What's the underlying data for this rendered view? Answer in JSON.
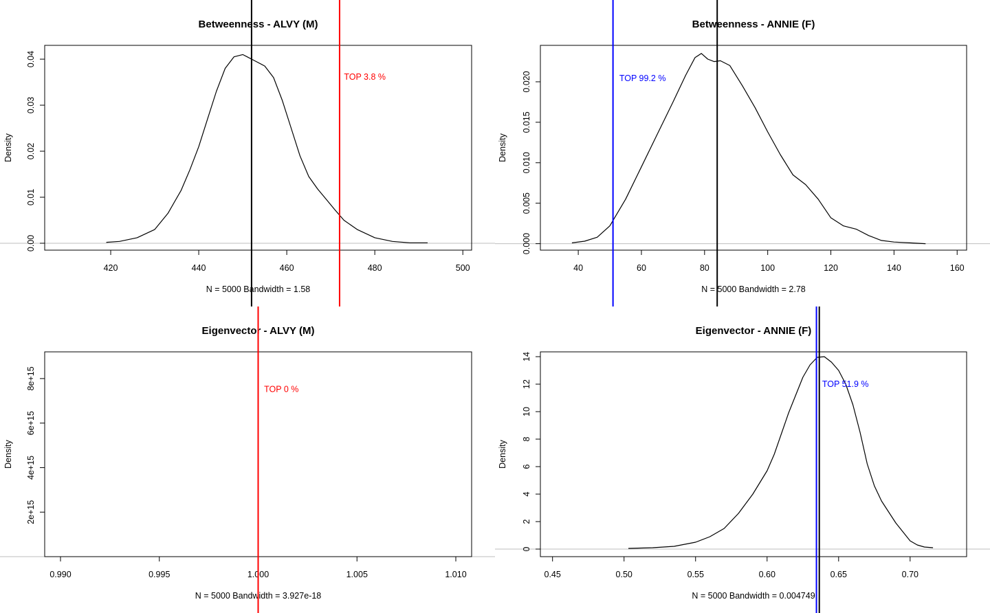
{
  "chart_data": [
    {
      "type": "density",
      "title": "Betweenness - ALVY (M)",
      "xlabel": "N = 5000   Bandwidth = 1.58",
      "ylabel": "Density",
      "xlim": [
        405,
        502
      ],
      "ylim": [
        -0.0015,
        0.043
      ],
      "xticks": [
        420,
        440,
        460,
        480,
        500
      ],
      "xtick_labels": [
        "420",
        "440",
        "460",
        "480",
        "500"
      ],
      "yticks": [
        0,
        0.01,
        0.02,
        0.03,
        0.04
      ],
      "ytick_labels": [
        "0.00",
        "0.01",
        "0.02",
        "0.03",
        "0.04"
      ],
      "curve": {
        "x": [
          419,
          422,
          426,
          430,
          433,
          436,
          438,
          440,
          442,
          444,
          446,
          448,
          450,
          451,
          453,
          455,
          457,
          459,
          461,
          463,
          465,
          467,
          469,
          471,
          473,
          476,
          480,
          484,
          488,
          492
        ],
        "y": [
          0.0002,
          0.0004,
          0.0012,
          0.003,
          0.0065,
          0.0115,
          0.016,
          0.021,
          0.027,
          0.033,
          0.038,
          0.0405,
          0.041,
          0.0405,
          0.0395,
          0.0385,
          0.036,
          0.031,
          0.025,
          0.019,
          0.0145,
          0.0118,
          0.0095,
          0.0072,
          0.005,
          0.003,
          0.0012,
          0.0004,
          0.0001,
          0.0001
        ]
      },
      "vlines": [
        {
          "name": "mean-line",
          "x": 452,
          "color": "#000000"
        },
        {
          "name": "observed-line",
          "x": 472,
          "color": "#ff0000"
        }
      ],
      "annotation": {
        "text": "TOP 3.8 %",
        "x": 473,
        "y": 0.0355,
        "color": "#ff0000"
      }
    },
    {
      "type": "density",
      "title": "Betweenness - ANNIE (F)",
      "xlabel": "N = 5000   Bandwidth = 2.78",
      "ylabel": "Density",
      "xlim": [
        28,
        163
      ],
      "ylim": [
        -0.0008,
        0.0245
      ],
      "xticks": [
        40,
        60,
        80,
        100,
        120,
        140,
        160
      ],
      "xtick_labels": [
        "40",
        "60",
        "80",
        "100",
        "120",
        "140",
        "160"
      ],
      "yticks": [
        0,
        0.005,
        0.01,
        0.015,
        0.02
      ],
      "ytick_labels": [
        "0.000",
        "0.005",
        "0.010",
        "0.015",
        "0.020"
      ],
      "curve": {
        "x": [
          38,
          42,
          46,
          50,
          55,
          60,
          65,
          70,
          74,
          77,
          79,
          81,
          83,
          85,
          88,
          92,
          96,
          100,
          104,
          108,
          112,
          116,
          120,
          124,
          128,
          132,
          136,
          140,
          145,
          150
        ],
        "y": [
          0.0001,
          0.0003,
          0.0008,
          0.0022,
          0.0055,
          0.0095,
          0.0135,
          0.0175,
          0.0208,
          0.023,
          0.0235,
          0.0228,
          0.0225,
          0.0226,
          0.022,
          0.0195,
          0.0168,
          0.0138,
          0.011,
          0.0085,
          0.0073,
          0.0055,
          0.0032,
          0.0022,
          0.0018,
          0.001,
          0.0004,
          0.0002,
          0.0001,
          0
        ]
      },
      "vlines": [
        {
          "name": "observed-line",
          "x": 51,
          "color": "#0000ff"
        },
        {
          "name": "mean-line",
          "x": 84,
          "color": "#000000"
        }
      ],
      "annotation": {
        "text": "TOP 99.2 %",
        "x": 53,
        "y": 0.0201,
        "color": "#0000ff"
      }
    },
    {
      "type": "density",
      "title": "Eigenvector - ALVY (M)",
      "xlabel": "N = 5000   Bandwidth = 3.927e-18",
      "ylabel": "Density",
      "xlim": [
        0.9892,
        1.0108
      ],
      "ylim": [
        0,
        9200000000000000.0
      ],
      "xticks": [
        0.99,
        0.995,
        1.0,
        1.005,
        1.01
      ],
      "xtick_labels": [
        "0.990",
        "0.995",
        "1.000",
        "1.005",
        "1.010"
      ],
      "yticks": [
        2000000000000000.0,
        4000000000000000.0,
        6000000000000000.0,
        8000000000000000.0
      ],
      "ytick_labels": [
        "2e+15",
        "4e+15",
        "6e+15",
        "8e+15"
      ],
      "vlines": [
        {
          "name": "observed-line",
          "x": 1.0,
          "color": "#ff0000"
        }
      ],
      "annotation": {
        "text": "TOP 0 %",
        "x": 1.0003,
        "y": 7400000000000000.0,
        "color": "#ff0000"
      }
    },
    {
      "type": "density",
      "title": "Eigenvector - ANNIE (F)",
      "xlabel": "N = 5000   Bandwidth = 0.004749",
      "ylabel": "Density",
      "xlim": [
        0.4415,
        0.7395
      ],
      "ylim": [
        -0.55,
        14.35
      ],
      "xticks": [
        0.45,
        0.5,
        0.55,
        0.6,
        0.65,
        0.7
      ],
      "xtick_labels": [
        "0.45",
        "0.50",
        "0.55",
        "0.60",
        "0.65",
        "0.70"
      ],
      "yticks": [
        0,
        2,
        4,
        6,
        8,
        10,
        12,
        14
      ],
      "ytick_labels": [
        "0",
        "2",
        "4",
        "6",
        "8",
        "10",
        "12",
        "14"
      ],
      "curve": {
        "x": [
          0.503,
          0.52,
          0.535,
          0.55,
          0.56,
          0.57,
          0.58,
          0.59,
          0.6,
          0.605,
          0.61,
          0.615,
          0.62,
          0.625,
          0.63,
          0.635,
          0.64,
          0.645,
          0.65,
          0.655,
          0.66,
          0.665,
          0.67,
          0.675,
          0.68,
          0.69,
          0.7,
          0.705,
          0.71,
          0.716
        ],
        "y": [
          0.05,
          0.1,
          0.2,
          0.5,
          0.9,
          1.5,
          2.6,
          4.0,
          5.7,
          6.9,
          8.4,
          9.9,
          11.2,
          12.5,
          13.4,
          13.95,
          14.0,
          13.6,
          13.0,
          12.0,
          10.5,
          8.5,
          6.2,
          4.6,
          3.5,
          1.9,
          0.6,
          0.3,
          0.15,
          0.1
        ]
      },
      "vlines": [
        {
          "name": "observed-line",
          "x": 0.6345,
          "color": "#0000ff"
        },
        {
          "name": "mean-line",
          "x": 0.6365,
          "color": "#000000"
        }
      ],
      "annotation": {
        "text": "TOP 51.9 %",
        "x": 0.6385,
        "y": 11.8,
        "color": "#0000ff"
      }
    }
  ]
}
